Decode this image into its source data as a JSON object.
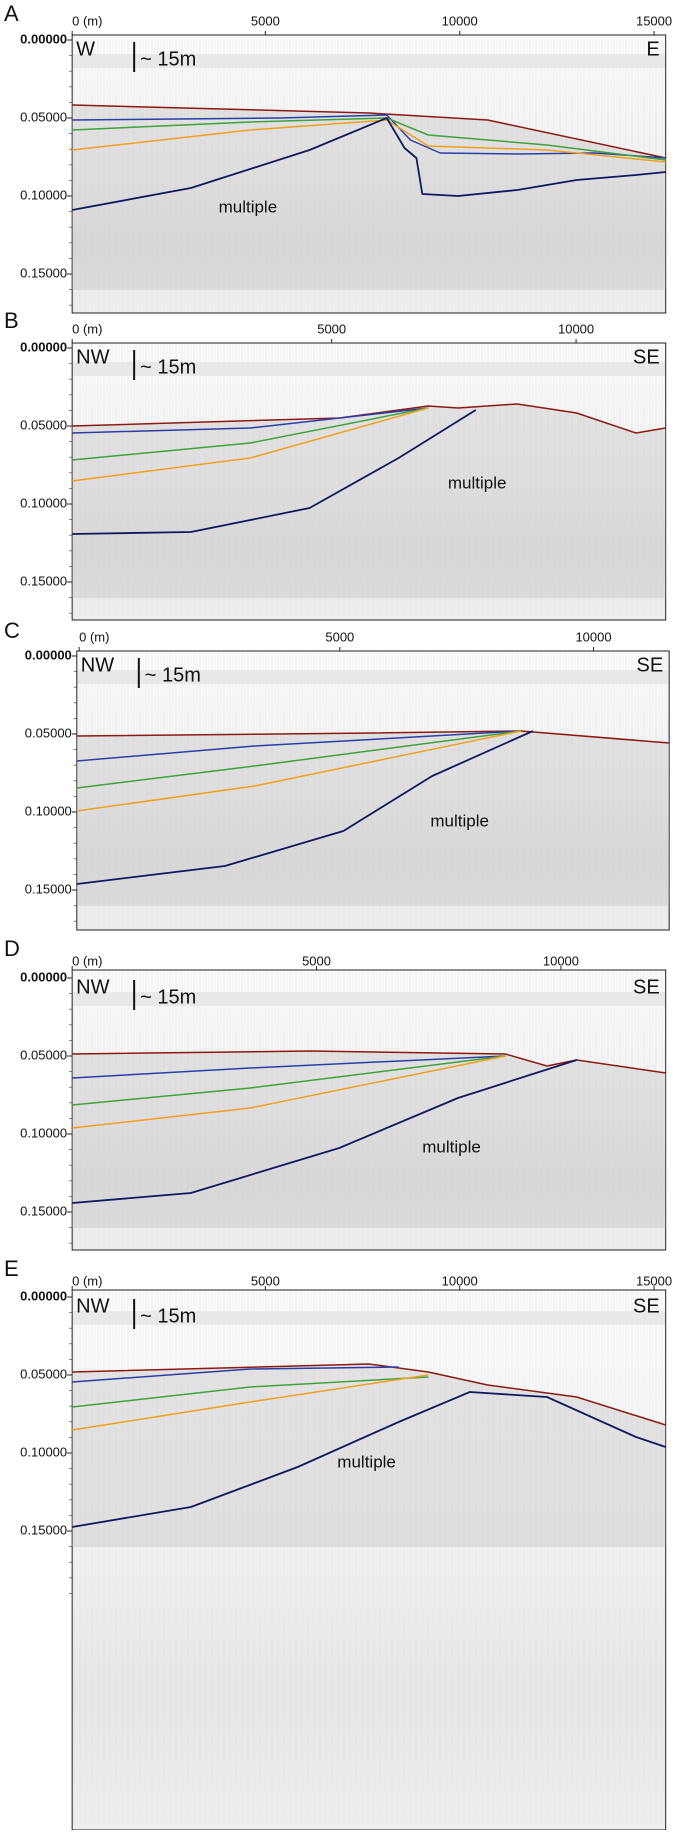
{
  "panels": [
    {
      "label": "A",
      "x_ticks": [
        "0 (m)",
        "5000",
        "10000",
        "15000"
      ],
      "y_ticks": [
        "0.00000",
        "0.05000",
        "0.10000",
        "0.15000"
      ],
      "left_dir": "W",
      "right_dir": "E",
      "scale": "~ 15m",
      "annotation": "multiple"
    },
    {
      "label": "B",
      "x_ticks": [
        "0 (m)",
        "5000",
        "10000"
      ],
      "y_ticks": [
        "0.00000",
        "0.05000",
        "0.10000",
        "0.15000"
      ],
      "left_dir": "NW",
      "right_dir": "SE",
      "scale": "~ 15m",
      "annotation": "multiple"
    },
    {
      "label": "C",
      "x_ticks": [
        "0 (m)",
        "5000",
        "10000"
      ],
      "y_ticks": [
        "0.00000",
        "0.05000",
        "0.10000",
        "0.15000"
      ],
      "left_dir": "NW",
      "right_dir": "SE",
      "scale": "~ 15m",
      "annotation": "multiple"
    },
    {
      "label": "D",
      "x_ticks": [
        "0 (m)",
        "5000",
        "10000"
      ],
      "y_ticks": [
        "0.00000",
        "0.05000",
        "0.10000",
        "0.15000"
      ],
      "left_dir": "NW",
      "right_dir": "SE",
      "scale": "~ 15m",
      "annotation": "multiple"
    },
    {
      "label": "E",
      "x_ticks": [
        "0 (m)",
        "5000",
        "10000",
        "15000"
      ],
      "y_ticks": [
        "0.00000",
        "0.05000",
        "0.10000",
        "0.15000"
      ],
      "left_dir": "NW",
      "right_dir": "SE",
      "scale": "~ 15m",
      "annotation": "multiple"
    }
  ]
}
